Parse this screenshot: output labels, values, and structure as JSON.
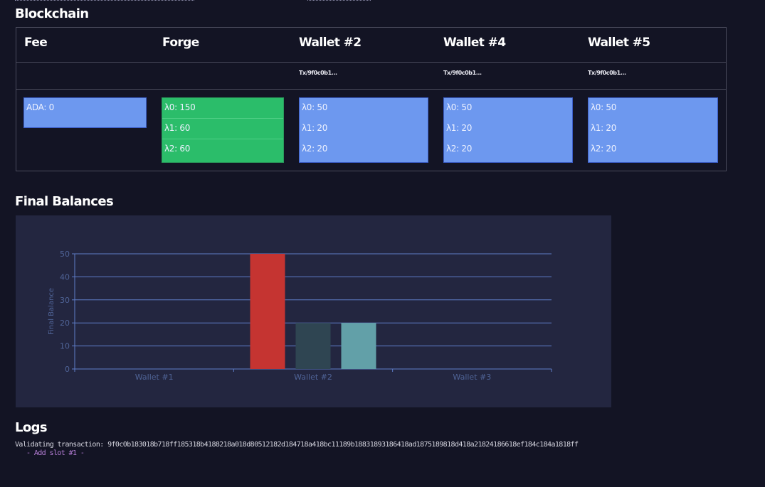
{
  "sections": {
    "blockchain_title": "Blockchain",
    "balances_title": "Final Balances",
    "logs_title": "Logs"
  },
  "blockchain": {
    "columns": [
      {
        "title": "Fee",
        "tx": "",
        "color": "blue",
        "entries": [
          "ADA: 0"
        ]
      },
      {
        "title": "Forge",
        "tx": "",
        "color": "green",
        "entries": [
          "λ0: 150",
          "λ1: 60",
          "λ2: 60"
        ]
      },
      {
        "title": "Wallet #2",
        "tx": "Tx/9f0c0b1...",
        "color": "blue",
        "entries": [
          "λ0: 50",
          "λ1: 20",
          "λ2: 20"
        ]
      },
      {
        "title": "Wallet #4",
        "tx": "Tx/9f0c0b1...",
        "color": "blue",
        "entries": [
          "λ0: 50",
          "λ1: 20",
          "λ2: 20"
        ]
      },
      {
        "title": "Wallet #5",
        "tx": "Tx/9f0c0b1...",
        "color": "blue",
        "entries": [
          "λ0: 50",
          "λ1: 20",
          "λ2: 20"
        ]
      }
    ]
  },
  "colors": {
    "background": "#131424",
    "cell_blue": "#6d98ef",
    "cell_green": "#2bbd6a",
    "chart_bg": "#232640",
    "bar_red": "#c53431",
    "bar_dark": "#2f4552",
    "bar_teal": "#62a0a8"
  },
  "chart_data": {
    "type": "bar",
    "title": "Final Balances",
    "xlabel": "",
    "ylabel": "Final Balance",
    "categories": [
      "Wallet #1",
      "Wallet #2",
      "Wallet #3"
    ],
    "series": [
      {
        "name": "λ0",
        "values": [
          0,
          50,
          0
        ],
        "color": "#c53431"
      },
      {
        "name": "λ1",
        "values": [
          0,
          20,
          0
        ],
        "color": "#2f4552"
      },
      {
        "name": "λ2",
        "values": [
          0,
          20,
          0
        ],
        "color": "#62a0a8"
      }
    ],
    "yticks": [
      0,
      10,
      20,
      30,
      40,
      50
    ],
    "ylim": [
      0,
      50
    ],
    "grid": true,
    "legend": "none"
  },
  "logs": [
    "Validating transaction: 9f0c0b183018b718ff185318b4188218a018d80512182d184718a418bc11189b18831893186418ad1875189818d418a21824186618ef184c184a1818ff",
    "- Add slot #1 -"
  ]
}
